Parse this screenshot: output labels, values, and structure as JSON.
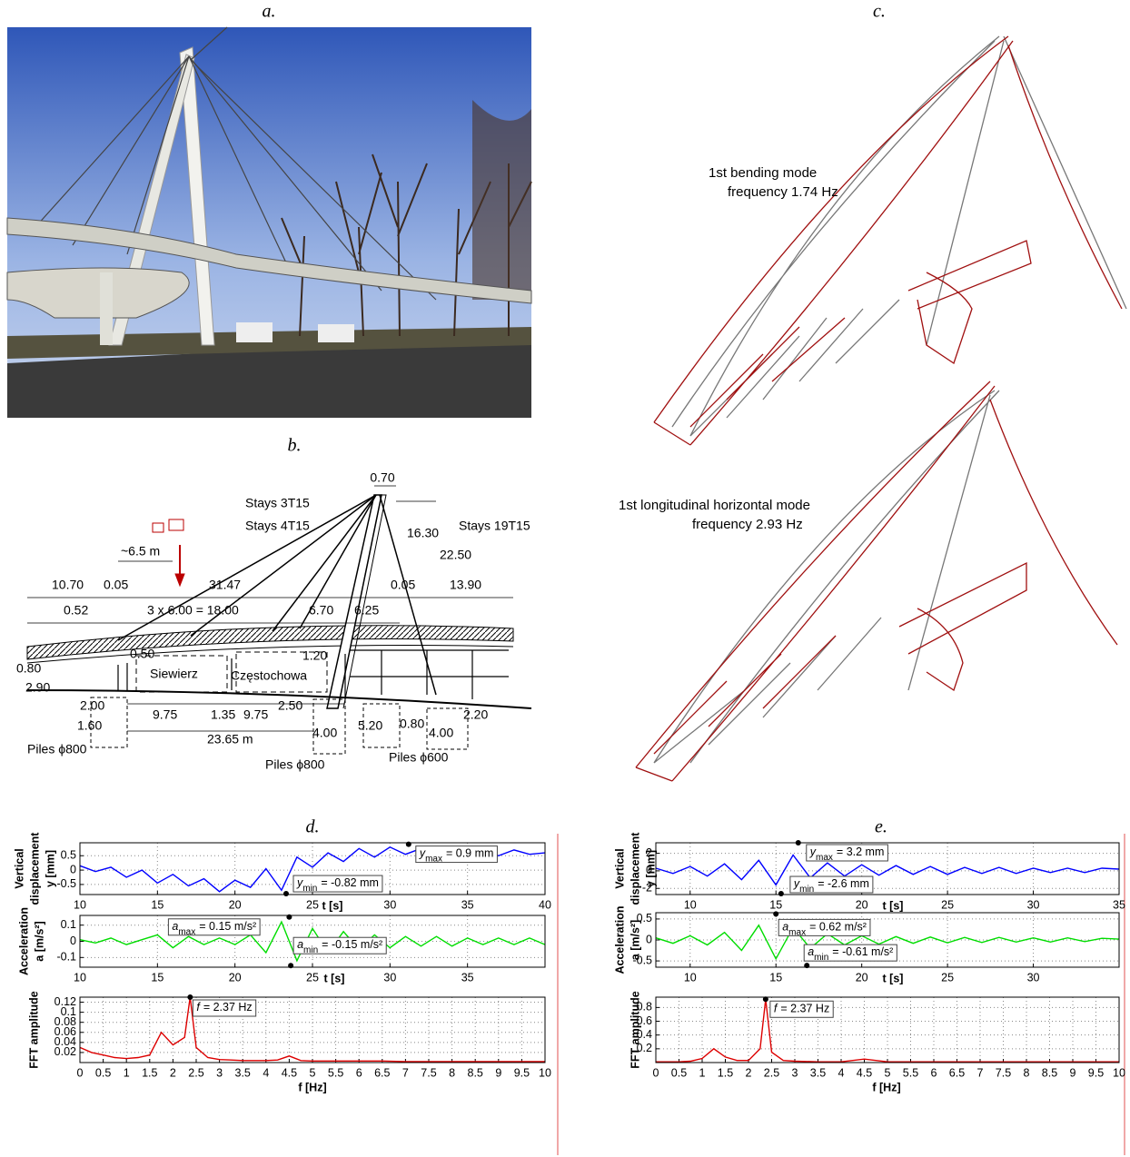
{
  "panels": {
    "a": {
      "label": "a."
    },
    "b": {
      "label": "b.",
      "labels": [
        "0.70",
        "Stays 3T15",
        "Stays 4T15",
        "Stays 19T15",
        "16.30",
        "22.50",
        "~6.5 m",
        "10.70",
        "0.05",
        "31.47",
        "0.05",
        "13.90",
        "0.52",
        "3 x 6.00 = 18.00",
        "6.70",
        "6.25",
        "0.50",
        "1.20",
        "Siewierz",
        "Częstochowa",
        "0.80",
        "2.90",
        "2.00",
        "9.75",
        "1.35",
        "9.75",
        "2.50",
        "1.60",
        "2.20",
        "5.20",
        "0.80",
        "4.00",
        "4.00",
        "23.65 m",
        "Piles ϕ800",
        "Piles ϕ800",
        "Piles ϕ600"
      ]
    },
    "c": {
      "label": "c.",
      "modes": [
        {
          "name": "1st bending mode",
          "frequency": "frequency 1.74 Hz"
        },
        {
          "name": "1st longitudinal horizontal mode",
          "frequency": "frequency 2.93 Hz"
        }
      ]
    },
    "d": {
      "label": "d."
    },
    "e": {
      "label": "e."
    }
  },
  "chart_data": [
    {
      "type": "line",
      "ylabel": [
        "Vertical",
        "displacement",
        "y [mm]"
      ],
      "xlabel": "t [s]",
      "color": "#0000ff",
      "grid": true,
      "xlim": [
        10,
        40
      ],
      "xticks": [
        10,
        15,
        20,
        25,
        30,
        35,
        40
      ],
      "ylim": [
        -0.85,
        0.95
      ],
      "yticks": [
        -0.5,
        0,
        0.5
      ],
      "x": [
        10,
        11,
        12,
        13,
        14,
        15,
        16,
        17,
        18,
        19,
        20,
        21,
        22,
        23,
        24,
        25,
        26,
        27,
        28,
        29,
        30,
        31,
        32,
        33,
        34,
        35,
        36,
        37,
        38,
        39,
        40
      ],
      "values": [
        0.15,
        -0.05,
        0.1,
        -0.25,
        0,
        -0.45,
        -0.15,
        -0.55,
        -0.3,
        -0.75,
        -0.35,
        -0.6,
        0.05,
        -0.7,
        0.45,
        0.1,
        0.6,
        0.3,
        0.75,
        0.45,
        0.8,
        0.55,
        0.75,
        0.5,
        0.75,
        0.55,
        0.7,
        0.5,
        0.7,
        0.55,
        0.6
      ],
      "annotations": [
        {
          "x": 31.2,
          "y": 0.9,
          "symbol": "y",
          "subscript": "max",
          "text": "= 0.9 mm"
        },
        {
          "x": 23.3,
          "y": -0.82,
          "symbol": "y",
          "subscript": "min",
          "text": "= -0.82 mm"
        }
      ]
    },
    {
      "type": "line",
      "ylabel": [
        "Acceleration",
        "a [m/s²]"
      ],
      "xlabel": "t [s]",
      "color": "#00dd00",
      "grid": true,
      "xlim": [
        10,
        40
      ],
      "xticks": [
        10,
        15,
        20,
        25,
        30,
        35
      ],
      "ylim": [
        -0.16,
        0.16
      ],
      "yticks": [
        -0.1,
        0,
        0.1
      ],
      "x": [
        10,
        11,
        12,
        13,
        14,
        15,
        16,
        17,
        18,
        19,
        20,
        21,
        22,
        23,
        24,
        25,
        26,
        27,
        28,
        29,
        30,
        31,
        32,
        33,
        34,
        35,
        36,
        37,
        38,
        39,
        40
      ],
      "values": [
        0.01,
        -0.01,
        0.02,
        -0.02,
        0.01,
        0.04,
        -0.04,
        0.03,
        -0.02,
        0.02,
        -0.02,
        0.04,
        -0.07,
        0.12,
        -0.12,
        0.08,
        -0.07,
        0.06,
        -0.05,
        0.04,
        -0.04,
        0.03,
        -0.03,
        0.03,
        -0.03,
        0.02,
        -0.02,
        0.02,
        -0.02,
        0.02,
        -0.02
      ],
      "annotations": [
        {
          "x": 23.5,
          "y": 0.15,
          "symbol": "a",
          "subscript": "max",
          "text": "= 0.15 m/s²"
        },
        {
          "x": 23.6,
          "y": -0.15,
          "symbol": "a",
          "subscript": "min",
          "text": "= -0.15 m/s²"
        }
      ]
    },
    {
      "type": "line",
      "ylabel": [
        "FFT amplitude"
      ],
      "xlabel": "f [Hz]",
      "color": "#dd0000",
      "grid": true,
      "xlim": [
        0,
        10
      ],
      "xticks": [
        0,
        0.5,
        1,
        1.5,
        2,
        2.5,
        3,
        3.5,
        4,
        4.5,
        5,
        5.5,
        6,
        6.5,
        7,
        7.5,
        8,
        8.5,
        9,
        9.5,
        10
      ],
      "ylim": [
        0,
        0.13
      ],
      "yticks": [
        0.02,
        0.04,
        0.06,
        0.08,
        0.1,
        0.12
      ],
      "x": [
        0,
        0.25,
        0.5,
        0.75,
        1,
        1.25,
        1.5,
        1.75,
        2,
        2.25,
        2.37,
        2.5,
        2.75,
        3,
        3.25,
        3.5,
        3.75,
        4,
        4.25,
        4.5,
        4.75,
        5,
        5.5,
        6,
        6.5,
        7,
        7.5,
        8,
        8.5,
        9,
        9.5,
        10
      ],
      "values": [
        0.03,
        0.02,
        0.015,
        0.01,
        0.008,
        0.01,
        0.015,
        0.06,
        0.035,
        0.05,
        0.13,
        0.03,
        0.01,
        0.006,
        0.005,
        0.004,
        0.004,
        0.004,
        0.005,
        0.013,
        0.004,
        0.003,
        0.003,
        0.003,
        0.003,
        0.002,
        0.002,
        0.002,
        0.002,
        0.002,
        0.002,
        0.002
      ],
      "annotations": [
        {
          "x": 2.37,
          "y": 0.13,
          "symbol": "f",
          "text": "= 2.37 Hz"
        }
      ]
    },
    {
      "type": "line",
      "ylabel": [
        "Vertical",
        "displacement",
        "y [mm]"
      ],
      "xlabel": "t [s]",
      "color": "#0000ff",
      "grid": true,
      "xlim": [
        8,
        35
      ],
      "xticks": [
        10,
        15,
        20,
        25,
        30,
        35
      ],
      "ylim": [
        -2.7,
        3.2
      ],
      "yticks": [
        -2,
        0,
        2
      ],
      "x": [
        8,
        9,
        10,
        11,
        12,
        13,
        14,
        15,
        16,
        17,
        18,
        19,
        20,
        21,
        22,
        23,
        24,
        25,
        26,
        27,
        28,
        29,
        30,
        31,
        32,
        33,
        34,
        35
      ],
      "values": [
        0.3,
        -0.3,
        0.5,
        -0.6,
        0.8,
        -1,
        1.2,
        -1.6,
        1.8,
        -0.8,
        0.9,
        -0.6,
        0.7,
        -0.5,
        0.6,
        -0.4,
        0.5,
        -0.4,
        0.4,
        -0.3,
        0.4,
        -0.3,
        0.3,
        -0.2,
        0.3,
        -0.2,
        0.3,
        0.2
      ],
      "annotations": [
        {
          "x": 16.3,
          "y": 3.2,
          "symbol": "y",
          "subscript": "max",
          "text": "= 3.2 mm"
        },
        {
          "x": 15.3,
          "y": -2.6,
          "symbol": "y",
          "subscript": "min",
          "text": "= -2.6 mm"
        }
      ]
    },
    {
      "type": "line",
      "ylabel": [
        "Acceleration",
        "a [m/s²]"
      ],
      "xlabel": "t [s]",
      "color": "#00dd00",
      "grid": true,
      "xlim": [
        8,
        35
      ],
      "xticks": [
        10,
        15,
        20,
        25,
        30
      ],
      "ylim": [
        -0.65,
        0.65
      ],
      "yticks": [
        -0.5,
        0,
        0.5
      ],
      "x": [
        8,
        9,
        10,
        11,
        12,
        13,
        14,
        15,
        16,
        17,
        18,
        19,
        20,
        21,
        22,
        23,
        24,
        25,
        26,
        27,
        28,
        29,
        30,
        31,
        32,
        33,
        34,
        35
      ],
      "values": [
        0.05,
        -0.08,
        0.1,
        -0.12,
        0.18,
        -0.25,
        0.35,
        -0.45,
        0.3,
        -0.2,
        0.15,
        -0.12,
        0.1,
        -0.1,
        0.08,
        -0.08,
        0.07,
        -0.07,
        0.06,
        -0.06,
        0.06,
        -0.05,
        0.05,
        -0.05,
        0.05,
        -0.04,
        0.04,
        0.02
      ],
      "annotations": [
        {
          "x": 15,
          "y": 0.62,
          "symbol": "a",
          "subscript": "max",
          "text": "= 0.62 m/s²"
        },
        {
          "x": 16.8,
          "y": -0.61,
          "symbol": "a",
          "subscript": "min",
          "text": "= -0.61 m/s²"
        }
      ]
    },
    {
      "type": "line",
      "ylabel": [
        "FFT amplitude"
      ],
      "xlabel": "f [Hz]",
      "color": "#dd0000",
      "grid": true,
      "xlim": [
        0,
        10
      ],
      "xticks": [
        0,
        0.5,
        1,
        1.5,
        2,
        2.5,
        3,
        3.5,
        4,
        4.5,
        5,
        5.5,
        6,
        6.5,
        7,
        7.5,
        8,
        8.5,
        9,
        9.5,
        10
      ],
      "ylim": [
        0,
        0.95
      ],
      "yticks": [
        0.2,
        0.4,
        0.6,
        0.8
      ],
      "x": [
        0,
        0.25,
        0.5,
        0.75,
        1,
        1.25,
        1.5,
        1.75,
        2,
        2.25,
        2.37,
        2.5,
        2.75,
        3,
        3.5,
        4,
        4.5,
        5,
        5.5,
        6,
        7,
        8,
        9,
        10
      ],
      "values": [
        0.01,
        0.01,
        0.01,
        0.02,
        0.06,
        0.2,
        0.08,
        0.03,
        0.03,
        0.2,
        0.92,
        0.15,
        0.03,
        0.02,
        0.01,
        0.01,
        0.05,
        0.01,
        0.01,
        0.01,
        0.01,
        0.01,
        0.01,
        0.01
      ],
      "annotations": [
        {
          "x": 2.37,
          "y": 0.92,
          "symbol": "f",
          "text": "= 2.37 Hz"
        }
      ]
    }
  ]
}
